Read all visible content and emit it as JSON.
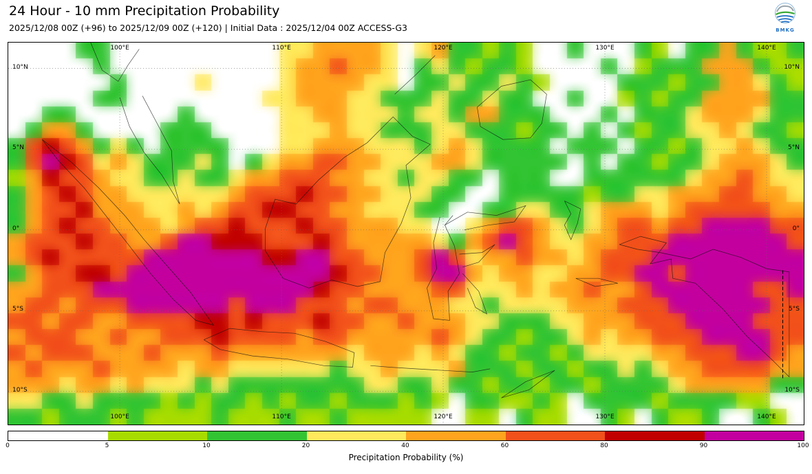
{
  "header": {
    "title": "24 Hour - 10 mm Precipitation Probability",
    "subtitle": "2025/12/08 00Z (+96) to 2025/12/09 00Z (+120) | Initial Data : 2025/12/04 00Z ACCESS-G3",
    "logo_text": "BMKG"
  },
  "map": {
    "lon_ticks": [
      {
        "value": 100,
        "label": "100°E"
      },
      {
        "value": 110,
        "label": "110°E"
      },
      {
        "value": 120,
        "label": "120°E"
      },
      {
        "value": 130,
        "label": "130°E"
      },
      {
        "value": 140,
        "label": "140°E"
      }
    ],
    "lat_ticks": [
      {
        "value": 10,
        "label": "10°N"
      },
      {
        "value": 5,
        "label": "5°N"
      },
      {
        "value": 0,
        "label": "0°"
      },
      {
        "value": -5,
        "label": "5°S"
      },
      {
        "value": -10,
        "label": "10°S"
      }
    ]
  },
  "colorbar": {
    "label": "Precipitation Probability (%)",
    "ticks": [
      "0",
      "5",
      "10",
      "20",
      "40",
      "60",
      "80",
      "90",
      "100"
    ]
  },
  "chart_data": {
    "type": "heatmap",
    "title": "24 Hour - 10 mm Precipitation Probability",
    "unit": "%",
    "lon_range": [
      93.1,
      142.3
    ],
    "lat_range": [
      -12.05,
      11.6
    ],
    "legend_ticks": [
      0,
      5,
      10,
      20,
      40,
      60,
      80,
      90,
      100
    ],
    "class_bounds": [
      [
        0,
        5
      ],
      [
        5,
        10
      ],
      [
        10,
        20
      ],
      [
        20,
        40
      ],
      [
        40,
        60
      ],
      [
        60,
        80
      ],
      [
        80,
        90
      ],
      [
        90,
        100
      ]
    ],
    "palette": [
      "#ffffff",
      "#a8dc00",
      "#33c433",
      "#ffe95c",
      "#ffa41e",
      "#f2511b",
      "#c10000",
      "#c3009f"
    ],
    "grid_encoding": "rows north-to-south; each char is probability class index 0-7",
    "grid": [
      "00002200000000003344443034221210020002102242112",
      "00000200000000003445443023212210000201222444211",
      "00000020000300003444433022322321000022212244321",
      "00000220000000033444332223223220020012122444422",
      "00220000002000003344333233244222000202223444322",
      "02442000022200003334332223322212202021223343221",
      "25654232022220003344433323432222022202212334322",
      "25765343222320234455443334432222202022122344432",
      "14655433223223445554433233220222002222223445433",
      "24565443333334555655443332200222221223344455443",
      "24556444334345566554433322002233223444345555544",
      "24565544434556555655444330034554323455455777755",
      "45556554457766655565444443245754334455577777775",
      "45655555777777766775544457534454434555777777777",
      "24556657777777777776554457743443344557757777777",
      "44555777777777777765544445533343445445777777557",
      "45545557777775777555455444332333344455577777755",
      "55455445555665655565544544433222334445557777555",
      "45554454455565555455444445432212234344555777755",
      "54555444544454444444344434322122123333445557754",
      "45444544443443333332334333422212212232344555544",
      "44434434333232222222233223221221221222234444422",
      "33223222212122121221222121022112102222122221100",
      "22122212111121112112111110011021100210211200210"
    ]
  }
}
